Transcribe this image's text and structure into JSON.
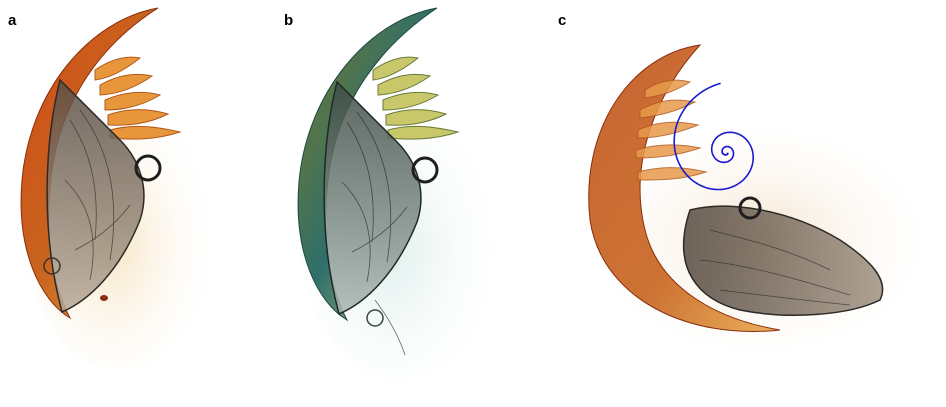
{
  "panels": [
    {
      "label": "a"
    },
    {
      "label": "b"
    },
    {
      "label": "c"
    }
  ],
  "colors": {
    "specimen_orange": "#c8641e",
    "specimen_gold": "#e8a84a",
    "specimen_dark": "#2c2a26",
    "specimen_teal": "#2f6f6a",
    "specimen_yellow": "#d8d27a",
    "spiral_blue": "#1a1ad0"
  }
}
